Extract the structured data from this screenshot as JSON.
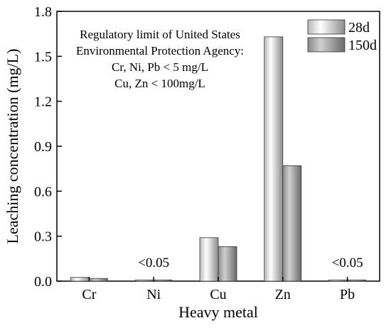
{
  "chart_data": {
    "type": "bar",
    "title": "",
    "xlabel": "Heavy metal",
    "ylabel": "Leaching concentration (mg/L)",
    "categories": [
      "Cr",
      "Ni",
      "Cu",
      "Zn",
      "Pb"
    ],
    "series": [
      {
        "name": "28d",
        "values": [
          0.025,
          0.008,
          0.29,
          1.63,
          0.008
        ],
        "color": "#e0e0e0"
      },
      {
        "name": "150d",
        "values": [
          0.018,
          0.008,
          0.23,
          0.77,
          0.008
        ],
        "color": "#a8a8a8"
      }
    ],
    "ylim": [
      0,
      1.8
    ],
    "yticks": [
      "0.0",
      "0.3",
      "0.6",
      "0.9",
      "1.2",
      "1.5",
      "1.8"
    ],
    "grid": false,
    "legend_position": "top-right",
    "data_labels": [
      {
        "category": "Ni",
        "text": "<0.05"
      },
      {
        "category": "Pb",
        "text": "<0.05"
      }
    ],
    "annotation_lines": [
      "Regulatory limit of United States",
      "Environmental Protection Agency:",
      "Cr, Ni, Pb < 5 mg/L",
      "Cu, Zn < 100mg/L"
    ]
  }
}
